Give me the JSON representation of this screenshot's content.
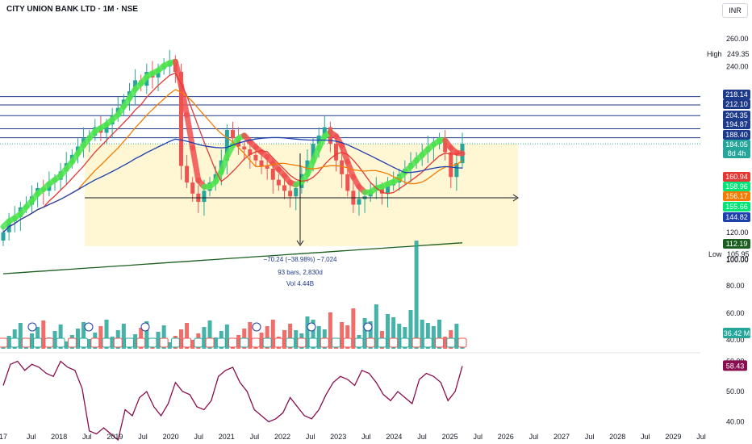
{
  "header": {
    "symbol_title": "CITY UNION BANK LTD · 1M · NSE",
    "currency": "INR"
  },
  "chart_data": {
    "type": "candlestick",
    "title": "CITY UNION BANK LTD · 1M · NSE",
    "price_axis": {
      "ticks": [
        260,
        240,
        120,
        100
      ],
      "visible_labels": [
        "260.00",
        "240.00",
        "120.00",
        "100.00"
      ],
      "range": [
        100,
        270
      ]
    },
    "time_axis": {
      "labels": [
        "17",
        "Jul",
        "2018",
        "Jul",
        "2019",
        "Jul",
        "2020",
        "Jul",
        "2021",
        "Jul",
        "2022",
        "Jul",
        "2023",
        "Jul",
        "2024",
        "Jul",
        "2025",
        "Jul",
        "2026",
        "Jul",
        "2027",
        "Jul",
        "2028",
        "Jul",
        "2029",
        "Jul"
      ]
    },
    "horizontal_levels": [
      218.14,
      212.1,
      204.35,
      194.87,
      188.4
    ],
    "price_badges": [
      {
        "value": "218.14",
        "color": "#1e3a8a"
      },
      {
        "value": "212.10",
        "color": "#1e3a8a"
      },
      {
        "value": "204.35",
        "color": "#1e3a8a"
      },
      {
        "value": "194.87",
        "color": "#1e3a8a"
      },
      {
        "value": "188.40",
        "color": "#1e3a8a"
      },
      {
        "value": "184.05",
        "color": "#26a69a"
      },
      {
        "value": "8d 4h",
        "color": "#26a69a"
      },
      {
        "value": "160.94",
        "color": "#e53935"
      },
      {
        "value": "158.96",
        "color": "#00e676"
      },
      {
        "value": "156.17",
        "color": "#f57c00"
      },
      {
        "value": "155.66",
        "color": "#00e676"
      },
      {
        "value": "144.82",
        "color": "#1e40af"
      },
      {
        "value": "112.19",
        "color": "#1b5e20"
      }
    ],
    "high_label": {
      "label": "High",
      "value": "249.35"
    },
    "low_label": {
      "label": "Low",
      "value": "105.95"
    },
    "measure_annotation": {
      "line1": "−70.24 (−38.98%) −7,024",
      "line2": "93 bars, 2,830d",
      "line3": "Vol 4.44B"
    },
    "volume_axis": {
      "labels": [
        "100.00",
        "80.00",
        "60.00",
        "40.00"
      ]
    },
    "volume_badge": "36.42 M",
    "rsi": {
      "axis_labels": [
        "60.00",
        "50.00",
        "40.00"
      ],
      "range": [
        38,
        62
      ],
      "current": "58.43",
      "values": [
        52,
        59,
        60,
        57,
        59,
        58,
        56,
        55,
        60,
        58,
        57,
        51,
        37,
        36,
        38,
        36,
        34,
        44,
        42,
        48,
        50,
        45,
        42,
        46,
        53,
        50,
        49,
        45,
        44,
        47,
        55,
        57,
        58,
        53,
        50,
        44,
        42,
        40,
        41,
        43,
        48,
        45,
        42,
        41,
        44,
        49,
        53,
        55,
        54,
        52,
        57,
        56,
        53,
        49,
        47,
        50,
        48,
        46,
        54,
        56,
        55,
        53,
        47,
        50,
        58.43
      ]
    },
    "series": [
      {
        "name": "",
        "close": [
          120,
          128,
          131,
          138,
          140,
          146,
          152,
          150,
          156,
          158,
          164,
          170,
          176,
          182,
          188,
          190,
          196,
          192,
          198,
          204,
          210,
          216,
          222,
          230,
          226,
          236,
          232,
          238,
          240,
          244,
          236,
          168,
          156,
          148,
          142,
          150,
          156,
          162,
          172,
          194,
          188,
          182,
          180,
          176,
          172,
          168,
          166,
          158,
          154,
          150,
          146,
          152,
          162,
          172,
          184,
          190,
          196,
          184,
          172,
          162,
          150,
          140,
          144,
          146,
          150,
          152,
          148,
          154,
          156,
          162,
          166,
          170,
          174,
          178,
          182,
          184,
          186,
          178,
          160,
          170,
          184.05
        ]
      }
    ],
    "highlight_box": {
      "from_value": 184,
      "to_value": 110
    }
  }
}
